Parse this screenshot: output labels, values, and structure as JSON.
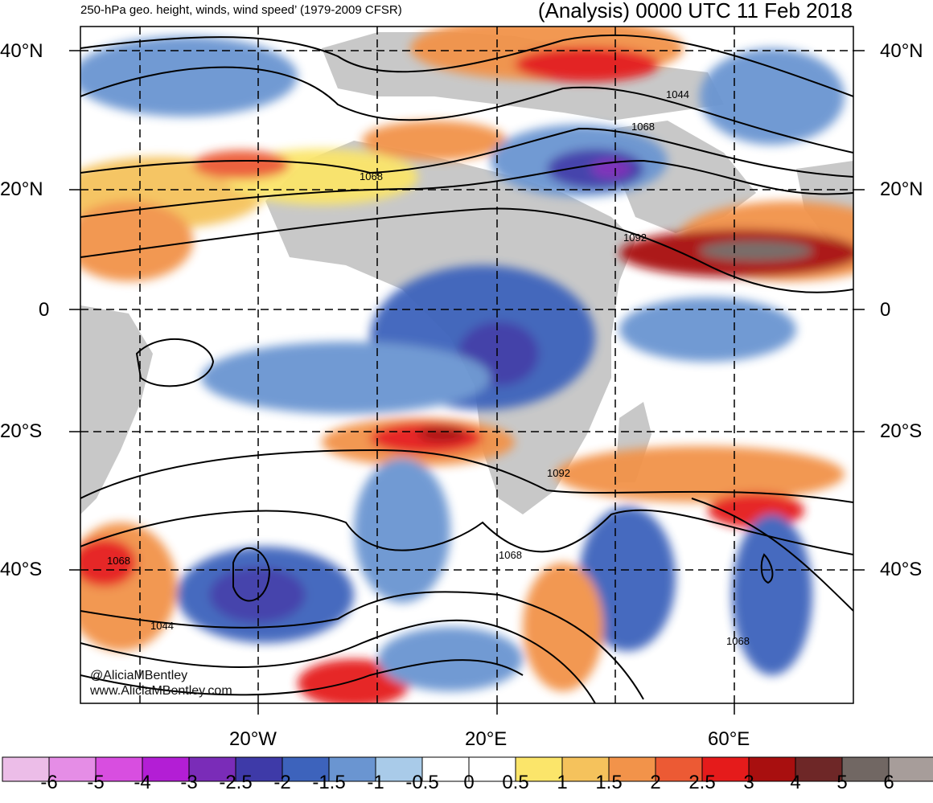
{
  "title_left": "250-hPa geo. height, winds, wind speed’ (1979-2009 CFSR)",
  "title_right": "(Analysis) 0000 UTC 11 Feb 2018",
  "lat_labels": [
    "40°N",
    "20°N",
    "0",
    "20°S",
    "40°S"
  ],
  "lon_labels": [
    "20°W",
    "20°E",
    "60°E"
  ],
  "credits": [
    "@AliciaMBentley",
    "www.AliciaMBentley.com"
  ],
  "contour_labels": [
    "1068",
    "1044",
    "1068",
    "1092",
    "1092",
    "1068",
    "1068",
    "1044",
    "1068"
  ],
  "colorbar": {
    "ticks": [
      "-6",
      "-5",
      "-4",
      "-3",
      "-2.5",
      "-2",
      "-1.5",
      "-1",
      "-0.5",
      "0",
      "0.5",
      "1",
      "1.5",
      "2",
      "2.5",
      "3",
      "4",
      "5",
      "6"
    ],
    "colors": [
      "#ecbde8",
      "#e58de6",
      "#d84ee0",
      "#b31ed5",
      "#7a2cb8",
      "#3e3aa8",
      "#3d63bc",
      "#6a95d1",
      "#a9cbe9",
      "#ffffff",
      "#ffffff",
      "#fbe56a",
      "#f5c25c",
      "#f2934a",
      "#ec5a34",
      "#e51b1b",
      "#a80f0f",
      "#6e2727",
      "#716763",
      "#a79d9a"
    ]
  },
  "colors": {
    "land": "#c8c8c8",
    "contour": "#000000",
    "grid": "#000000"
  }
}
